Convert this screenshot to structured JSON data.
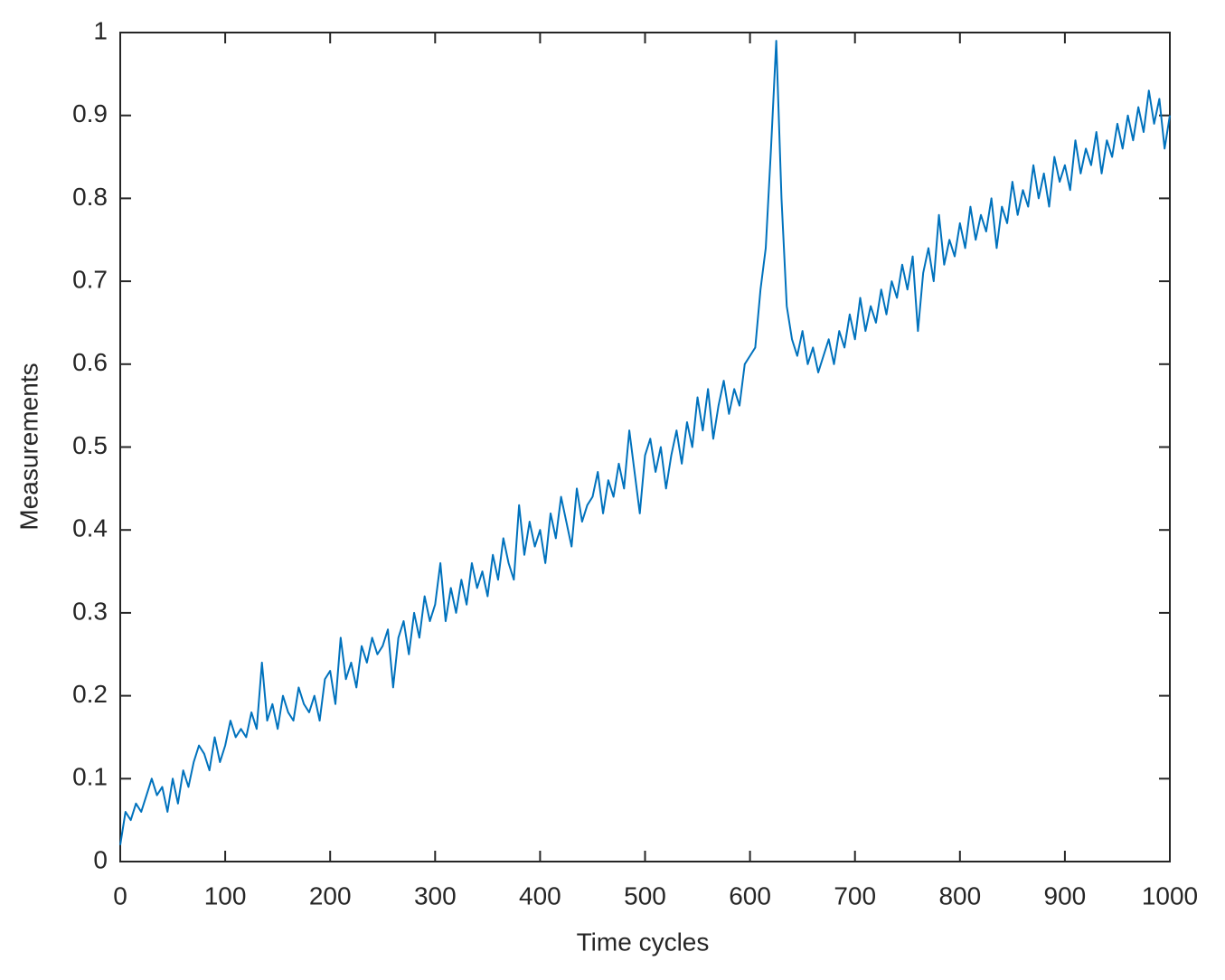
{
  "chart_data": {
    "type": "line",
    "xlabel": "Time cycles",
    "ylabel": "Measurements",
    "xlim": [
      0,
      1000
    ],
    "ylim": [
      0,
      1
    ],
    "xticks": [
      0,
      100,
      200,
      300,
      400,
      500,
      600,
      700,
      800,
      900,
      1000
    ],
    "yticks": [
      0,
      0.1,
      0.2,
      0.3,
      0.4,
      0.5,
      0.6,
      0.7,
      0.8,
      0.9,
      1
    ],
    "grid": false,
    "x": [
      0,
      5,
      10,
      15,
      20,
      25,
      30,
      35,
      40,
      45,
      50,
      55,
      60,
      65,
      70,
      75,
      80,
      85,
      90,
      95,
      100,
      105,
      110,
      115,
      120,
      125,
      130,
      135,
      140,
      145,
      150,
      155,
      160,
      165,
      170,
      175,
      180,
      185,
      190,
      195,
      200,
      205,
      210,
      215,
      220,
      225,
      230,
      235,
      240,
      245,
      250,
      255,
      260,
      265,
      270,
      275,
      280,
      285,
      290,
      295,
      300,
      305,
      310,
      315,
      320,
      325,
      330,
      335,
      340,
      345,
      350,
      355,
      360,
      365,
      370,
      375,
      380,
      385,
      390,
      395,
      400,
      405,
      410,
      415,
      420,
      425,
      430,
      435,
      440,
      445,
      450,
      455,
      460,
      465,
      470,
      475,
      480,
      485,
      490,
      495,
      500,
      505,
      510,
      515,
      520,
      525,
      530,
      535,
      540,
      545,
      550,
      555,
      560,
      565,
      570,
      575,
      580,
      585,
      590,
      595,
      600,
      605,
      610,
      615,
      620,
      625,
      630,
      635,
      640,
      645,
      650,
      655,
      660,
      665,
      670,
      675,
      680,
      685,
      690,
      695,
      700,
      705,
      710,
      715,
      720,
      725,
      730,
      735,
      740,
      745,
      750,
      755,
      760,
      765,
      770,
      775,
      780,
      785,
      790,
      795,
      800,
      805,
      810,
      815,
      820,
      825,
      830,
      835,
      840,
      845,
      850,
      855,
      860,
      865,
      870,
      875,
      880,
      885,
      890,
      895,
      900,
      905,
      910,
      915,
      920,
      925,
      930,
      935,
      940,
      945,
      950,
      955,
      960,
      965,
      970,
      975,
      980,
      985,
      990,
      995,
      1000
    ],
    "series": [
      {
        "color": "#0072bd",
        "values": [
          0.02,
          0.06,
          0.05,
          0.07,
          0.06,
          0.08,
          0.1,
          0.08,
          0.09,
          0.06,
          0.1,
          0.07,
          0.11,
          0.09,
          0.12,
          0.14,
          0.13,
          0.11,
          0.15,
          0.12,
          0.14,
          0.17,
          0.15,
          0.16,
          0.15,
          0.18,
          0.16,
          0.24,
          0.17,
          0.19,
          0.16,
          0.2,
          0.18,
          0.17,
          0.21,
          0.19,
          0.18,
          0.2,
          0.17,
          0.22,
          0.23,
          0.19,
          0.27,
          0.22,
          0.24,
          0.21,
          0.26,
          0.24,
          0.27,
          0.25,
          0.26,
          0.28,
          0.21,
          0.27,
          0.29,
          0.25,
          0.3,
          0.27,
          0.32,
          0.29,
          0.31,
          0.36,
          0.29,
          0.33,
          0.3,
          0.34,
          0.31,
          0.36,
          0.33,
          0.35,
          0.32,
          0.37,
          0.34,
          0.39,
          0.36,
          0.34,
          0.43,
          0.37,
          0.41,
          0.38,
          0.4,
          0.36,
          0.42,
          0.39,
          0.44,
          0.41,
          0.38,
          0.45,
          0.41,
          0.43,
          0.44,
          0.47,
          0.42,
          0.46,
          0.44,
          0.48,
          0.45,
          0.52,
          0.47,
          0.42,
          0.49,
          0.51,
          0.47,
          0.5,
          0.45,
          0.49,
          0.52,
          0.48,
          0.53,
          0.5,
          0.56,
          0.52,
          0.57,
          0.51,
          0.55,
          0.58,
          0.54,
          0.57,
          0.55,
          0.6,
          0.61,
          0.62,
          0.69,
          0.74,
          0.86,
          0.99,
          0.8,
          0.67,
          0.63,
          0.61,
          0.64,
          0.6,
          0.62,
          0.59,
          0.61,
          0.63,
          0.6,
          0.64,
          0.62,
          0.66,
          0.63,
          0.68,
          0.64,
          0.67,
          0.65,
          0.69,
          0.66,
          0.7,
          0.68,
          0.72,
          0.69,
          0.73,
          0.64,
          0.71,
          0.74,
          0.7,
          0.78,
          0.72,
          0.75,
          0.73,
          0.77,
          0.74,
          0.79,
          0.75,
          0.78,
          0.76,
          0.8,
          0.74,
          0.79,
          0.77,
          0.82,
          0.78,
          0.81,
          0.79,
          0.84,
          0.8,
          0.83,
          0.79,
          0.85,
          0.82,
          0.84,
          0.81,
          0.87,
          0.83,
          0.86,
          0.84,
          0.88,
          0.83,
          0.87,
          0.85,
          0.89,
          0.86,
          0.9,
          0.87,
          0.91,
          0.88,
          0.93,
          0.89,
          0.92,
          0.86,
          0.9
        ]
      }
    ]
  }
}
